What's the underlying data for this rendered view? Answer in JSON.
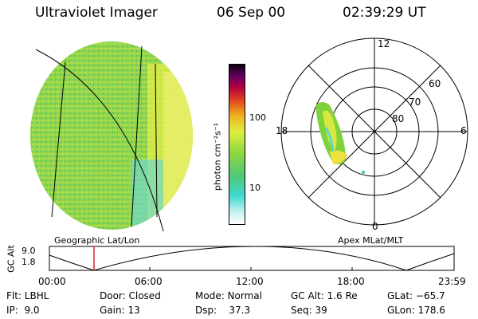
{
  "header": {
    "instrument": "Ultraviolet Imager",
    "date": "06 Sep 00",
    "time": "02:39:29 UT"
  },
  "colorbar": {
    "label": "photon cm⁻²s⁻¹",
    "ticks": [
      "100",
      "10"
    ]
  },
  "polar_plot": {
    "hour_labels": {
      "top": "12",
      "left": "18",
      "right": "6",
      "bottom": "0"
    },
    "lat_labels": [
      "60",
      "70",
      "80"
    ],
    "caption": "Apex MLat/MLT"
  },
  "geo_plot": {
    "caption": "Geographic Lat/Lon"
  },
  "altitude_strip": {
    "axis_label": "GC Alt",
    "y_ticks": [
      "9.0",
      "1.8"
    ],
    "x_ticks": [
      "00:00",
      "06:00",
      "12:00",
      "18:00",
      "23:59"
    ]
  },
  "info": {
    "row1": {
      "flt": "Flt: LBHL",
      "door": "Door: Closed",
      "mode": "Mode: Normal",
      "gcalt": "GC Alt: 1.6 Re",
      "glat": "GLat: −65.7"
    },
    "row2": {
      "ip": "IP:  9.0",
      "gain": "Gain: 13",
      "dsp": "Dsp:    37.3",
      "seq": "Seq: 39",
      "glon": "GLon: 178.6"
    }
  },
  "colors": {
    "aurora_green": "#7fd23a",
    "aurora_yellow": "#e8f040",
    "aurora_cyan": "#58d8d0",
    "marker_red": "#e00000"
  }
}
